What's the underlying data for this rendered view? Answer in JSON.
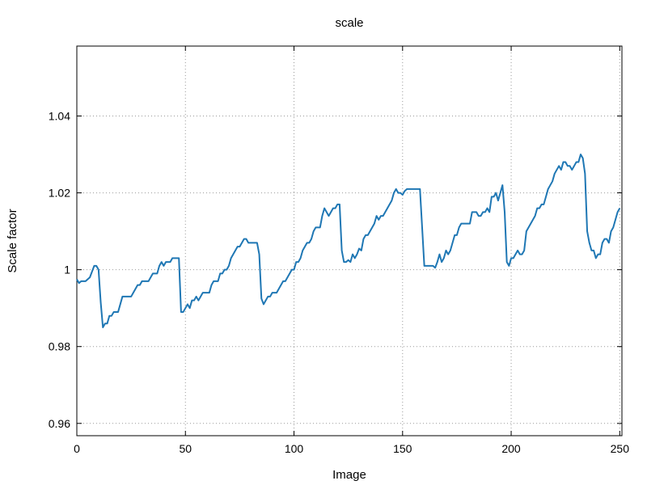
{
  "chart_data": {
    "type": "line",
    "title": "scale",
    "xlabel": "Image",
    "ylabel": "Scale factor",
    "xlim": [
      0,
      251
    ],
    "ylim": [
      0.9568,
      1.0582
    ],
    "xticks": [
      0,
      50,
      100,
      150,
      200,
      250
    ],
    "yticks": [
      0.96,
      0.98,
      1.0,
      1.02,
      1.04
    ],
    "ytick_labels": [
      "0.96",
      "0.98",
      "1",
      "1.02",
      "1.04"
    ],
    "grid": true,
    "line_color": "#1f77b4",
    "series": [
      {
        "name": "",
        "x": [
          0,
          1,
          2,
          3,
          4,
          5,
          6,
          7,
          8,
          9,
          10,
          11,
          12,
          13,
          14,
          15,
          16,
          17,
          18,
          19,
          20,
          21,
          22,
          23,
          24,
          25,
          26,
          27,
          28,
          29,
          30,
          31,
          32,
          33,
          34,
          35,
          36,
          37,
          38,
          39,
          40,
          41,
          42,
          43,
          44,
          45,
          46,
          47,
          48,
          49,
          50,
          51,
          52,
          53,
          54,
          55,
          56,
          57,
          58,
          59,
          60,
          61,
          62,
          63,
          64,
          65,
          66,
          67,
          68,
          69,
          70,
          71,
          72,
          73,
          74,
          75,
          76,
          77,
          78,
          79,
          80,
          81,
          82,
          83,
          84,
          85,
          86,
          87,
          88,
          89,
          90,
          91,
          92,
          93,
          94,
          95,
          96,
          97,
          98,
          99,
          100,
          101,
          102,
          103,
          104,
          105,
          106,
          107,
          108,
          109,
          110,
          111,
          112,
          113,
          114,
          115,
          116,
          117,
          118,
          119,
          120,
          121,
          122,
          123,
          124,
          125,
          126,
          127,
          128,
          129,
          130,
          131,
          132,
          133,
          134,
          135,
          136,
          137,
          138,
          139,
          140,
          141,
          142,
          143,
          144,
          145,
          146,
          147,
          148,
          149,
          150,
          151,
          152,
          153,
          154,
          155,
          156,
          157,
          158,
          159,
          160,
          161,
          162,
          163,
          164,
          165,
          166,
          167,
          168,
          169,
          170,
          171,
          172,
          173,
          174,
          175,
          176,
          177,
          178,
          179,
          180,
          181,
          182,
          183,
          184,
          185,
          186,
          187,
          188,
          189,
          190,
          191,
          192,
          193,
          194,
          195,
          196,
          197,
          198,
          199,
          200,
          201,
          202,
          203,
          204,
          205,
          206,
          207,
          208,
          209,
          210,
          211,
          212,
          213,
          214,
          215,
          216,
          217,
          218,
          219,
          220,
          221,
          222,
          223,
          224,
          225,
          226,
          227,
          228,
          229,
          230,
          231,
          232,
          233,
          234,
          235,
          236,
          237,
          238,
          239,
          240,
          241,
          242,
          243,
          244,
          245,
          246,
          247,
          248,
          249,
          250
        ],
        "y": [
          0.9975,
          0.9965,
          0.997,
          0.997,
          0.997,
          0.9975,
          0.998,
          0.9995,
          1.001,
          1.001,
          1.0,
          0.9915,
          0.985,
          0.986,
          0.986,
          0.988,
          0.988,
          0.989,
          0.989,
          0.989,
          0.991,
          0.993,
          0.993,
          0.993,
          0.993,
          0.993,
          0.994,
          0.995,
          0.996,
          0.996,
          0.997,
          0.997,
          0.997,
          0.997,
          0.998,
          0.999,
          0.999,
          0.999,
          1.001,
          1.002,
          1.001,
          1.002,
          1.002,
          1.002,
          1.003,
          1.003,
          1.003,
          1.003,
          0.989,
          0.989,
          0.99,
          0.991,
          0.99,
          0.992,
          0.992,
          0.993,
          0.992,
          0.993,
          0.994,
          0.994,
          0.994,
          0.994,
          0.996,
          0.997,
          0.997,
          0.997,
          0.999,
          0.999,
          1.0,
          1.0,
          1.001,
          1.003,
          1.004,
          1.005,
          1.006,
          1.006,
          1.007,
          1.008,
          1.008,
          1.007,
          1.007,
          1.007,
          1.007,
          1.007,
          1.004,
          0.9925,
          0.991,
          0.992,
          0.993,
          0.993,
          0.994,
          0.994,
          0.994,
          0.995,
          0.996,
          0.997,
          0.997,
          0.998,
          0.999,
          1.0,
          1.0,
          1.002,
          1.002,
          1.003,
          1.005,
          1.006,
          1.007,
          1.007,
          1.008,
          1.01,
          1.011,
          1.011,
          1.011,
          1.014,
          1.016,
          1.015,
          1.014,
          1.015,
          1.016,
          1.016,
          1.017,
          1.017,
          1.005,
          1.002,
          1.002,
          1.0025,
          1.002,
          1.004,
          1.003,
          1.004,
          1.0055,
          1.005,
          1.008,
          1.009,
          1.009,
          1.01,
          1.011,
          1.012,
          1.014,
          1.013,
          1.014,
          1.014,
          1.015,
          1.016,
          1.017,
          1.018,
          1.02,
          1.021,
          1.02,
          1.02,
          1.0195,
          1.0205,
          1.021,
          1.021,
          1.021,
          1.021,
          1.021,
          1.021,
          1.021,
          1.011,
          1.001,
          1.001,
          1.001,
          1.001,
          1.001,
          1.0005,
          1.002,
          1.004,
          1.002,
          1.003,
          1.005,
          1.004,
          1.005,
          1.007,
          1.009,
          1.009,
          1.011,
          1.012,
          1.012,
          1.012,
          1.012,
          1.012,
          1.015,
          1.015,
          1.015,
          1.014,
          1.014,
          1.015,
          1.015,
          1.016,
          1.015,
          1.019,
          1.019,
          1.02,
          1.018,
          1.02,
          1.022,
          1.015,
          1.002,
          1.001,
          1.003,
          1.003,
          1.004,
          1.005,
          1.004,
          1.004,
          1.005,
          1.01,
          1.011,
          1.012,
          1.013,
          1.014,
          1.016,
          1.016,
          1.017,
          1.017,
          1.019,
          1.021,
          1.022,
          1.023,
          1.025,
          1.026,
          1.027,
          1.026,
          1.028,
          1.028,
          1.027,
          1.027,
          1.026,
          1.027,
          1.028,
          1.028,
          1.03,
          1.029,
          1.025,
          1.01,
          1.007,
          1.005,
          1.005,
          1.003,
          1.004,
          1.004,
          1.007,
          1.008,
          1.008,
          1.007,
          1.01,
          1.011,
          1.013,
          1.015,
          1.016
        ]
      }
    ]
  }
}
